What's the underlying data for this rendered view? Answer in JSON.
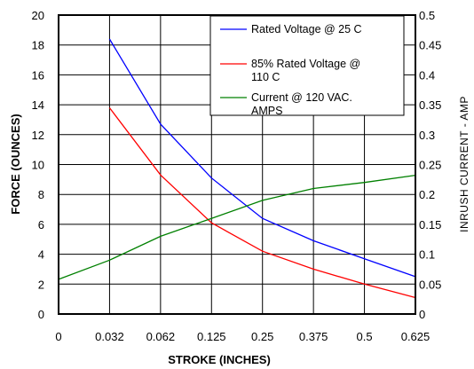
{
  "chart_data": {
    "type": "line",
    "x": [
      "0",
      "0.032",
      "0.062",
      "0.125",
      "0.25",
      "0.375",
      "0.5",
      "0.625"
    ],
    "xlabel": "STROKE (INCHES)",
    "ylabel": "FORCE (OUNCES)",
    "y2label": "INRUSH CURRENT - AMP",
    "ylim": [
      0,
      20
    ],
    "y2lim": [
      0,
      0.5
    ],
    "yticks": [
      "0",
      "2",
      "4",
      "6",
      "8",
      "10",
      "12",
      "14",
      "16",
      "18",
      "20"
    ],
    "y2ticks": [
      "0",
      "0.05",
      "0.1",
      "0.15",
      "0.2",
      "0.25",
      "0.3",
      "0.35",
      "0.4",
      "0.45",
      "0.5"
    ],
    "grid": true,
    "legend_position": "top-right",
    "series": [
      {
        "name": "Rated Voltage @ 25 C",
        "name_lines": [
          "Rated Voltage @ 25 C"
        ],
        "axis": "left",
        "color": "#0000ff",
        "points": [
          [
            1,
            18.4
          ],
          [
            2,
            12.7
          ],
          [
            3,
            9.1
          ],
          [
            4,
            6.4
          ],
          [
            5,
            4.9
          ],
          [
            6,
            3.7
          ],
          [
            7,
            2.5
          ]
        ]
      },
      {
        "name": "85% Rated Voltage @ 110 C",
        "name_lines": [
          "85% Rated Voltage @",
          "110 C"
        ],
        "axis": "left",
        "color": "#ff0000",
        "points": [
          [
            1,
            13.8
          ],
          [
            2,
            9.3
          ],
          [
            3,
            6.1
          ],
          [
            4,
            4.2
          ],
          [
            5,
            3.0
          ],
          [
            6,
            2.0
          ],
          [
            7,
            1.1
          ]
        ]
      },
      {
        "name": "Current @ 120 VAC. AMPS",
        "name_lines": [
          "Current @ 120 VAC.",
          "AMPS"
        ],
        "axis": "right",
        "color": "#008000",
        "points": [
          [
            0,
            0.058
          ],
          [
            1,
            0.09
          ],
          [
            2,
            0.13
          ],
          [
            3,
            0.16
          ],
          [
            4,
            0.19
          ],
          [
            5,
            0.21
          ],
          [
            6,
            0.22
          ],
          [
            7,
            0.232
          ]
        ]
      }
    ]
  }
}
